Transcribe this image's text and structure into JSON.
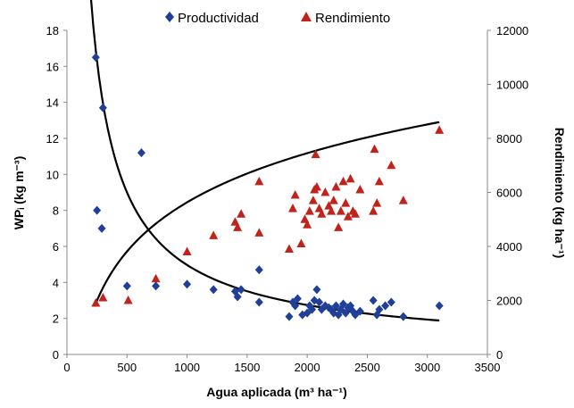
{
  "chart_data": {
    "type": "scatter",
    "title": "",
    "xlabel": "Agua aplicada (m³ ha⁻¹)",
    "ylabel_left": "WPᵢ (kg m⁻³)",
    "ylabel_right": "Rendimiento (kg ha⁻¹)",
    "xlim": [
      0,
      3500
    ],
    "ylim_left": [
      0,
      18
    ],
    "ylim_right": [
      0,
      12000
    ],
    "x_ticks": [
      "0",
      "500",
      "1000",
      "1500",
      "2000",
      "2500",
      "3000",
      "3500"
    ],
    "y_left_ticks": [
      "0",
      "2",
      "4",
      "6",
      "8",
      "10",
      "12",
      "14",
      "16",
      "18"
    ],
    "y_right_ticks": [
      "0",
      "2000",
      "4000",
      "6000",
      "8000",
      "10000",
      "12000"
    ],
    "grid": false,
    "legend_position": "top",
    "colors": {
      "productividad": "#1f3f99",
      "rendimiento": "#c0231c",
      "trend": "#000000"
    },
    "series": [
      {
        "name": "Productividad",
        "axis": "left",
        "marker": "diamond",
        "points": [
          [
            240,
            16.5
          ],
          [
            250,
            8.0
          ],
          [
            300,
            13.7
          ],
          [
            290,
            7.0
          ],
          [
            620,
            11.2
          ],
          [
            500,
            3.8
          ],
          [
            740,
            3.8
          ],
          [
            1000,
            3.9
          ],
          [
            1220,
            3.6
          ],
          [
            1400,
            3.5
          ],
          [
            1420,
            3.2
          ],
          [
            1450,
            3.6
          ],
          [
            1600,
            4.7
          ],
          [
            1600,
            2.9
          ],
          [
            1850,
            2.1
          ],
          [
            1880,
            2.9
          ],
          [
            1900,
            2.7
          ],
          [
            1920,
            3.1
          ],
          [
            1960,
            2.2
          ],
          [
            2000,
            2.3
          ],
          [
            2020,
            2.7
          ],
          [
            2040,
            2.5
          ],
          [
            2060,
            3.0
          ],
          [
            2080,
            3.6
          ],
          [
            2100,
            2.9
          ],
          [
            2120,
            2.5
          ],
          [
            2150,
            2.7
          ],
          [
            2180,
            2.6
          ],
          [
            2200,
            2.5
          ],
          [
            2220,
            2.3
          ],
          [
            2240,
            2.7
          ],
          [
            2260,
            2.2
          ],
          [
            2280,
            2.5
          ],
          [
            2300,
            2.8
          ],
          [
            2320,
            2.3
          ],
          [
            2340,
            2.6
          ],
          [
            2360,
            2.7
          ],
          [
            2380,
            2.4
          ],
          [
            2400,
            2.2
          ],
          [
            2440,
            2.4
          ],
          [
            2550,
            3.0
          ],
          [
            2580,
            2.2
          ],
          [
            2600,
            2.5
          ],
          [
            2650,
            2.7
          ],
          [
            2700,
            2.9
          ],
          [
            2800,
            2.1
          ],
          [
            3100,
            2.7
          ]
        ]
      },
      {
        "name": "Rendimiento",
        "axis": "right",
        "marker": "triangle",
        "points": [
          [
            240,
            1900
          ],
          [
            300,
            2100
          ],
          [
            510,
            2000
          ],
          [
            740,
            2800
          ],
          [
            1000,
            3800
          ],
          [
            1220,
            4400
          ],
          [
            1400,
            4900
          ],
          [
            1420,
            4700
          ],
          [
            1450,
            5200
          ],
          [
            1600,
            6400
          ],
          [
            1600,
            4500
          ],
          [
            1850,
            3900
          ],
          [
            1880,
            5400
          ],
          [
            1900,
            5900
          ],
          [
            1950,
            4100
          ],
          [
            1980,
            5000
          ],
          [
            2000,
            4800
          ],
          [
            2020,
            5300
          ],
          [
            2050,
            5700
          ],
          [
            2060,
            6100
          ],
          [
            2070,
            7400
          ],
          [
            2080,
            6200
          ],
          [
            2100,
            5400
          ],
          [
            2120,
            5200
          ],
          [
            2150,
            6000
          ],
          [
            2180,
            5500
          ],
          [
            2200,
            5300
          ],
          [
            2220,
            5700
          ],
          [
            2240,
            6200
          ],
          [
            2260,
            4700
          ],
          [
            2280,
            5300
          ],
          [
            2300,
            6400
          ],
          [
            2320,
            5600
          ],
          [
            2340,
            5100
          ],
          [
            2360,
            6500
          ],
          [
            2380,
            5300
          ],
          [
            2400,
            5200
          ],
          [
            2440,
            6100
          ],
          [
            2550,
            5300
          ],
          [
            2560,
            7600
          ],
          [
            2580,
            5600
          ],
          [
            2600,
            6400
          ],
          [
            2700,
            7000
          ],
          [
            2800,
            5700
          ],
          [
            3100,
            8300
          ]
        ]
      }
    ],
    "trendlines": [
      {
        "series": "Productividad",
        "axis": "left",
        "model": "power",
        "a": 1850,
        "b": -0.857,
        "x_range": [
          170,
          3100
        ]
      },
      {
        "series": "Rendimiento",
        "axis": "right",
        "model": "log",
        "a": 2625,
        "b": -12500,
        "x_range": [
          230,
          3100
        ]
      }
    ]
  }
}
